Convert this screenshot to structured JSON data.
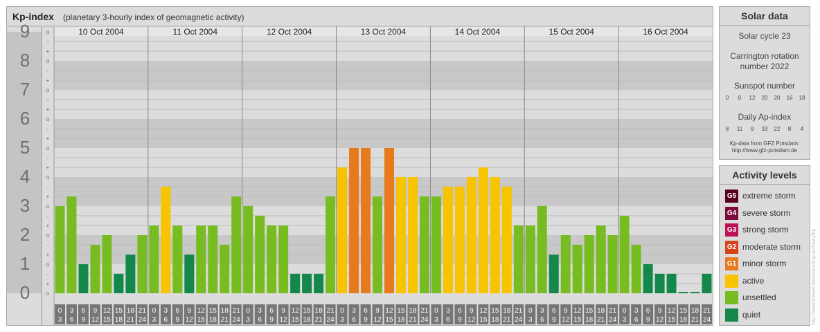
{
  "header": {
    "title": "Kp-index",
    "subtitle": "(planetary 3-hourly index of geomagnetic activity)"
  },
  "chart_data": {
    "type": "bar",
    "title": "Kp-index",
    "subtitle": "(planetary 3-hourly index of geomagnetic activity)",
    "ylim": [
      0,
      9
    ],
    "y_major_labels": [
      "0",
      "1",
      "2",
      "3",
      "4",
      "5",
      "6",
      "7",
      "8",
      "9"
    ],
    "y_minor_labels": [
      "-",
      "o",
      "+"
    ],
    "days": [
      "10 Oct 2004",
      "11 Oct 2004",
      "12 Oct 2004",
      "13 Oct 2004",
      "14 Oct 2004",
      "15 Oct 2004",
      "16 Oct 2004"
    ],
    "slot_start_hours": [
      "0",
      "3",
      "6",
      "9",
      "12",
      "15",
      "18",
      "21"
    ],
    "slot_end_hours": [
      "3",
      "6",
      "9",
      "12",
      "15",
      "18",
      "21",
      "24"
    ],
    "values": [
      [
        3.0,
        3.33,
        1.0,
        1.67,
        2.0,
        0.67,
        1.33,
        2.0
      ],
      [
        2.33,
        3.67,
        2.33,
        1.33,
        2.33,
        2.33,
        1.67,
        3.33
      ],
      [
        3.0,
        2.67,
        2.33,
        2.33,
        0.67,
        0.67,
        0.67,
        3.33
      ],
      [
        4.33,
        5.0,
        5.0,
        3.33,
        5.0,
        4.0,
        4.0,
        3.33
      ],
      [
        3.33,
        3.67,
        3.67,
        4.0,
        4.33,
        4.0,
        3.67,
        2.33
      ],
      [
        2.33,
        3.0,
        1.33,
        2.0,
        1.67,
        2.0,
        2.33,
        2.0
      ],
      [
        2.67,
        1.67,
        1.0,
        0.67,
        0.67,
        0.0,
        0.0,
        0.67
      ]
    ],
    "bar_colors": {
      "quiet": "#13884a",
      "unsettled": "#77bc20",
      "active": "#f8c300",
      "minor_storm": "#e67a1d"
    }
  },
  "solar": {
    "title": "Solar data",
    "cycle": "Solar cycle 23",
    "carrington_line1": "Carrington rotation",
    "carrington_line2": "number 2022",
    "sunspot_label": "Sunspot number",
    "sunspot_values": [
      "0",
      "0",
      "12",
      "20",
      "20",
      "16",
      "18"
    ],
    "ap_label": "Daily Ap-index",
    "ap_values": [
      "8",
      "11",
      "9",
      "33",
      "22",
      "8",
      "4"
    ],
    "note_line1": "Kp-data from GFZ Potsdam:",
    "note_line2": "http://www.gfz-potsdam.de"
  },
  "activity": {
    "title": "Activity levels",
    "levels": [
      {
        "badge": "G5",
        "label": "extreme storm",
        "color": "#5a0022"
      },
      {
        "badge": "G4",
        "label": "severe storm",
        "color": "#7d0b3e"
      },
      {
        "badge": "G3",
        "label": "strong storm",
        "color": "#bb1157"
      },
      {
        "badge": "G2",
        "label": "moderate storm",
        "color": "#d9431c"
      },
      {
        "badge": "G1",
        "label": "minor storm",
        "color": "#e67a1d"
      },
      {
        "badge": "",
        "label": "active",
        "color": "#f8c300"
      },
      {
        "badge": "",
        "label": "unsettled",
        "color": "#77bc20"
      },
      {
        "badge": "",
        "label": "quiet",
        "color": "#13884a"
      }
    ]
  },
  "watermark": "http://www.tmeyer.de/sw/euro/sp-archive.php"
}
